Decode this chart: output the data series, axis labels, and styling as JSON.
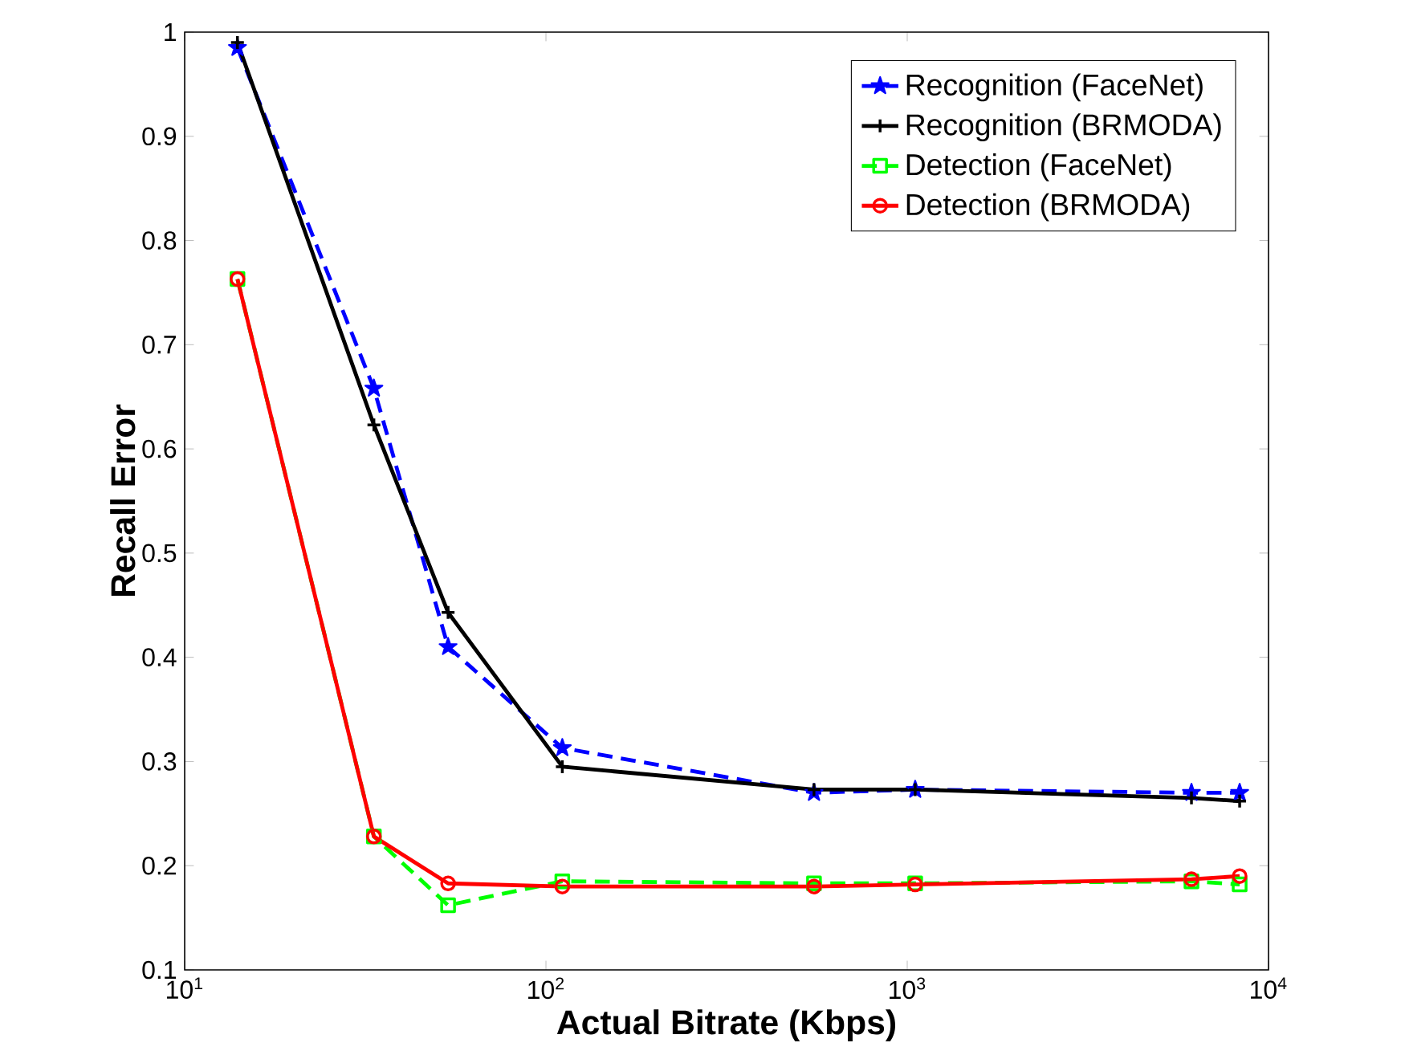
{
  "chart_data": {
    "type": "line",
    "xlabel": "Actual Bitrate (Kbps)",
    "ylabel": "Recall Error",
    "log": "x",
    "xlim": [
      10,
      10000
    ],
    "ylim": [
      0.1,
      1
    ],
    "xticks": [
      {
        "value": 10,
        "label": "10$^{1}$"
      },
      {
        "value": 100,
        "label": "10$^{2}$"
      },
      {
        "value": 1000,
        "label": "10$^{3}$"
      },
      {
        "value": 10000,
        "label": "10$^{4}$"
      }
    ],
    "yticks": [
      0.1,
      0.2,
      0.3,
      0.4,
      0.5,
      0.6,
      0.7,
      0.8,
      0.9,
      1
    ],
    "x": [
      14,
      33.4,
      53.6,
      111,
      552,
      1052,
      6120,
      8320
    ],
    "legend": "top right",
    "grid": false,
    "series": [
      {
        "name": "Recognition (FaceNet)",
        "color": "#0000ff",
        "marker": "star",
        "line_style": "dashed",
        "values": [
          0.985,
          0.658,
          0.41,
          0.313,
          0.27,
          0.273,
          0.27,
          0.27
        ]
      },
      {
        "name": "Recognition (BRMODA)",
        "color": "#000000",
        "marker": "cross",
        "line_style": "solid",
        "values": [
          0.99,
          0.623,
          0.443,
          0.295,
          0.273,
          0.273,
          0.265,
          0.262
        ]
      },
      {
        "name": "Detection (FaceNet)",
        "color": "#00ff00",
        "marker": "square",
        "line_style": "dashed",
        "values": [
          0.763,
          0.228,
          0.162,
          0.185,
          0.183,
          0.183,
          0.185,
          0.182
        ]
      },
      {
        "name": "Detection (BRMODA)",
        "color": "#ff0000",
        "marker": "circle",
        "line_style": "solid",
        "values": [
          0.763,
          0.228,
          0.183,
          0.18,
          0.18,
          0.182,
          0.187,
          0.19
        ]
      }
    ]
  }
}
